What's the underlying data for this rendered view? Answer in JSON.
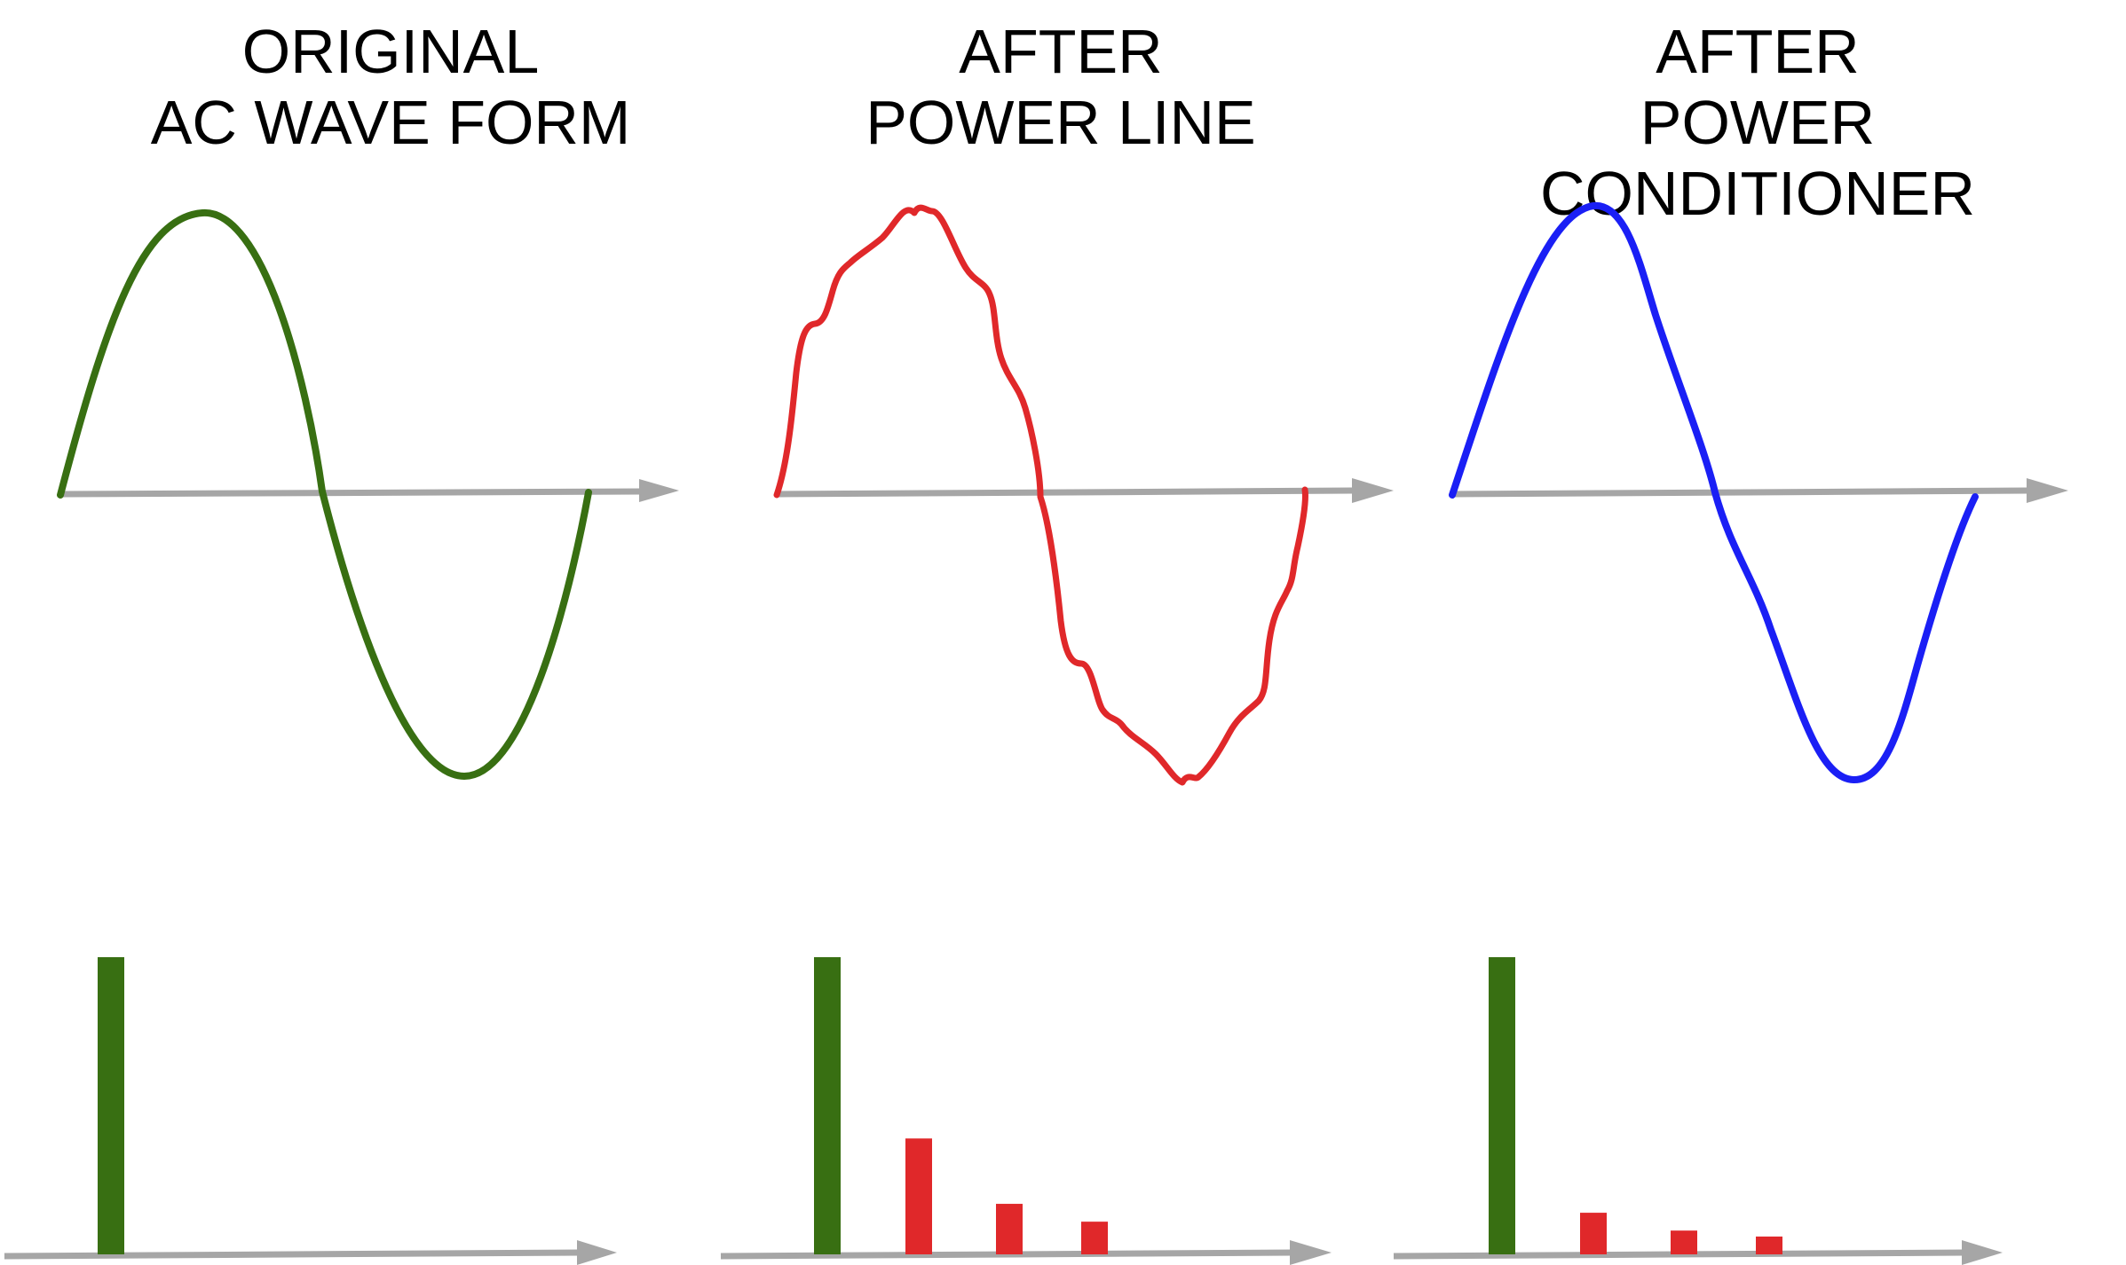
{
  "panels": [
    {
      "title_line1": "ORIGINAL",
      "title_line2": "AC WAVE FORM",
      "wave_color": "#386f12",
      "wave_type": "clean sine",
      "spectrum_bars": [
        {
          "harmonic": 1,
          "relative_height": 1.0,
          "color": "#386f12"
        }
      ]
    },
    {
      "title_line1": "AFTER",
      "title_line2": "POWER LINE",
      "wave_color": "#e0282a",
      "wave_type": "distorted sine",
      "spectrum_bars": [
        {
          "harmonic": 1,
          "relative_height": 1.0,
          "color": "#386f12"
        },
        {
          "harmonic": 2,
          "relative_height": 0.39,
          "color": "#e0282a"
        },
        {
          "harmonic": 3,
          "relative_height": 0.17,
          "color": "#e0282a"
        },
        {
          "harmonic": 4,
          "relative_height": 0.11,
          "color": "#e0282a"
        }
      ]
    },
    {
      "title_line1": "AFTER",
      "title_line2": "POWER CONDITIONER",
      "wave_color": "#1a1ff5",
      "wave_type": "smoothed sine",
      "spectrum_bars": [
        {
          "harmonic": 1,
          "relative_height": 1.0,
          "color": "#386f12"
        },
        {
          "harmonic": 2,
          "relative_height": 0.14,
          "color": "#e0282a"
        },
        {
          "harmonic": 3,
          "relative_height": 0.08,
          "color": "#e0282a"
        },
        {
          "harmonic": 4,
          "relative_height": 0.06,
          "color": "#e0282a"
        }
      ]
    }
  ],
  "axis_color": "#a6a6a6"
}
